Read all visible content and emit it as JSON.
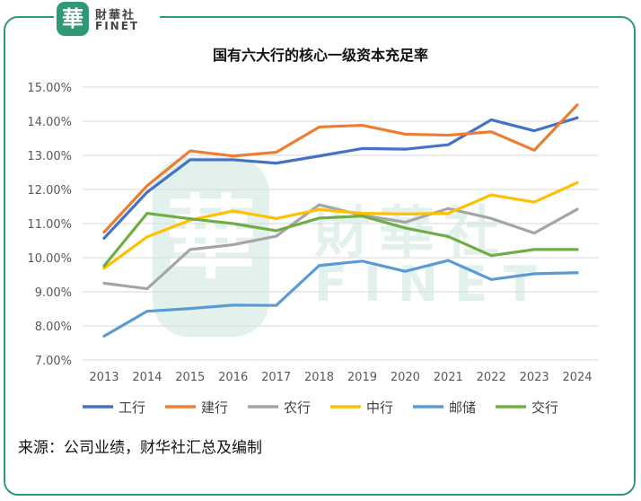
{
  "logo": {
    "seal_char": "華",
    "name_cn": "財華社",
    "name_en": "FINET",
    "watermark_cn": "財華社",
    "watermark_en": "FINET"
  },
  "source_text": "来源：公司业绩，财华社汇总及编制",
  "colors": {
    "frame": "#2e9a73",
    "grid": "#d9d9d9",
    "axis_text": "#595959"
  },
  "chart_data": {
    "type": "line",
    "title": "国有六大行的核心一级资本充足率",
    "xlabel": "",
    "ylabel": "",
    "categories": [
      "2013",
      "2014",
      "2015",
      "2016",
      "2017",
      "2018",
      "2019",
      "2020",
      "2021",
      "2022",
      "2023",
      "2024"
    ],
    "ylim": [
      7.0,
      15.0
    ],
    "yticks": [
      "7.00%",
      "8.00%",
      "9.00%",
      "10.00%",
      "11.00%",
      "12.00%",
      "13.00%",
      "14.00%",
      "15.00%"
    ],
    "grid": true,
    "legend_position": "bottom",
    "series": [
      {
        "name": "工行",
        "color": "#4472c4",
        "values": [
          10.57,
          11.92,
          12.87,
          12.87,
          12.77,
          12.98,
          13.2,
          13.18,
          13.31,
          14.04,
          13.72,
          14.1
        ]
      },
      {
        "name": "建行",
        "color": "#ed7d31",
        "values": [
          10.75,
          12.11,
          13.13,
          12.98,
          13.09,
          13.83,
          13.88,
          13.62,
          13.59,
          13.69,
          13.15,
          14.48
        ]
      },
      {
        "name": "农行",
        "color": "#a5a5a5",
        "values": [
          9.25,
          9.09,
          10.24,
          10.38,
          10.63,
          11.55,
          11.24,
          11.04,
          11.44,
          11.15,
          10.72,
          11.42
        ]
      },
      {
        "name": "中行",
        "color": "#ffc000",
        "values": [
          9.69,
          10.61,
          11.1,
          11.37,
          11.15,
          11.41,
          11.3,
          11.28,
          11.3,
          11.84,
          11.63,
          12.2
        ]
      },
      {
        "name": "邮储",
        "color": "#5b9bd5",
        "values": [
          7.7,
          8.43,
          8.51,
          8.61,
          8.6,
          9.77,
          9.9,
          9.6,
          9.92,
          9.36,
          9.53,
          9.56
        ]
      },
      {
        "name": "交行",
        "color": "#70ad47",
        "values": [
          9.76,
          11.3,
          11.14,
          11.0,
          10.79,
          11.16,
          11.22,
          10.87,
          10.62,
          10.06,
          10.24,
          10.24
        ]
      }
    ]
  }
}
